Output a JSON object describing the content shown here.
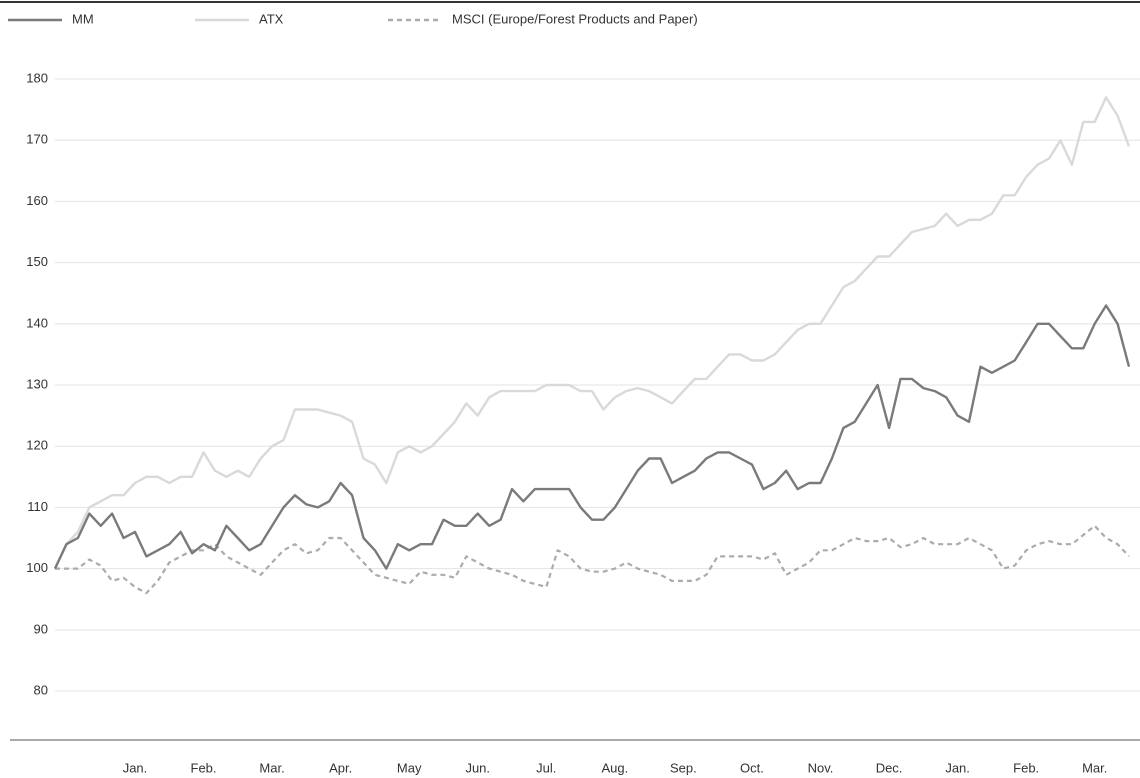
{
  "chart_data": {
    "type": "line",
    "categories": [
      null,
      null,
      null,
      null,
      null,
      null,
      null,
      "Jan.",
      null,
      null,
      null,
      null,
      null,
      "Feb.",
      null,
      null,
      null,
      null,
      null,
      "Mar.",
      null,
      null,
      null,
      null,
      null,
      "Apr.",
      null,
      null,
      null,
      null,
      null,
      "May",
      null,
      null,
      null,
      null,
      null,
      "Jun.",
      null,
      null,
      null,
      null,
      null,
      "Jul.",
      null,
      null,
      null,
      null,
      null,
      "Aug.",
      null,
      null,
      null,
      null,
      null,
      "Sep.",
      null,
      null,
      null,
      null,
      null,
      "Oct.",
      null,
      null,
      null,
      null,
      null,
      "Nov.",
      null,
      null,
      null,
      null,
      null,
      "Dec.",
      null,
      null,
      null,
      null,
      null,
      "Jan.",
      null,
      null,
      null,
      null,
      null,
      "Feb.",
      null,
      null,
      null,
      null,
      null,
      "Mar.",
      null,
      null,
      null
    ],
    "series": [
      {
        "name": "MM",
        "color": "#7a7a7a",
        "dash": false,
        "values": [
          100,
          104,
          105,
          109,
          107,
          109,
          105,
          106,
          102,
          103,
          104,
          106,
          102.5,
          104,
          103,
          107,
          105,
          103,
          104,
          107,
          110,
          112,
          110.5,
          110,
          111,
          114,
          112,
          105,
          103,
          100,
          104,
          103,
          104,
          104,
          108,
          107,
          107,
          109,
          107,
          108,
          113,
          111,
          113,
          113,
          113,
          113,
          110,
          108,
          108,
          110,
          113,
          116,
          118,
          118,
          114,
          115,
          116,
          118,
          119,
          119,
          118,
          117,
          113,
          114,
          116,
          113,
          114,
          114,
          118,
          123,
          124,
          127,
          130,
          123,
          131,
          131,
          129.5,
          129,
          128,
          125,
          124,
          133,
          132,
          133,
          134,
          137,
          140,
          140,
          138,
          136,
          136,
          140,
          143,
          140,
          133
        ]
      },
      {
        "name": "ATX",
        "color": "#d9d9d9",
        "dash": false,
        "values": [
          100,
          104,
          106,
          110,
          111,
          112,
          112,
          114,
          115,
          115,
          114,
          115,
          115,
          119,
          116,
          115,
          116,
          115,
          118,
          120,
          121,
          126,
          126,
          126,
          125.5,
          125,
          124,
          118,
          117,
          114,
          119,
          120,
          119,
          120,
          122,
          124,
          127,
          125,
          128,
          129,
          129,
          129,
          129,
          130,
          130,
          130,
          129,
          129,
          126,
          128,
          129,
          129.5,
          129,
          128,
          127,
          129,
          131,
          131,
          133,
          135,
          135,
          134,
          134,
          135,
          137,
          139,
          140,
          140,
          143,
          146,
          147,
          149,
          151,
          151,
          153,
          155,
          155.5,
          156,
          158,
          156,
          157,
          157,
          158,
          161,
          161,
          164,
          166,
          167,
          170,
          166,
          173,
          173,
          177,
          174,
          169
        ]
      },
      {
        "name": "MSCI (Europe/Forest Products and Paper)",
        "color": "#ababab",
        "dash": true,
        "values": [
          100,
          100,
          100,
          101.5,
          100.5,
          98,
          98.5,
          97,
          96,
          98,
          101,
          102,
          103,
          103,
          104,
          102,
          101,
          100,
          99,
          101,
          103,
          104,
          102.5,
          103,
          105,
          105,
          103,
          101,
          99,
          98.5,
          98,
          97.5,
          99.5,
          99,
          99,
          98.5,
          102,
          101,
          100,
          99.5,
          99,
          98,
          97.5,
          97,
          103,
          102,
          100,
          99.5,
          99.5,
          100,
          101,
          100,
          99.5,
          99,
          98,
          98,
          98,
          99,
          102,
          102,
          102,
          102,
          101.5,
          102.5,
          99,
          100,
          101,
          103,
          103,
          104,
          105,
          104.5,
          104.5,
          105,
          103.5,
          104,
          105,
          104,
          104,
          104,
          105,
          104,
          103,
          100,
          100.5,
          103,
          104,
          104.5,
          104,
          104,
          105.5,
          107,
          105,
          104,
          102
        ]
      }
    ],
    "ylim": [
      72,
      186
    ],
    "yticks": [
      80,
      90,
      100,
      110,
      120,
      130,
      140,
      150,
      160,
      170,
      180
    ],
    "grid": true,
    "legend": "top-left"
  }
}
